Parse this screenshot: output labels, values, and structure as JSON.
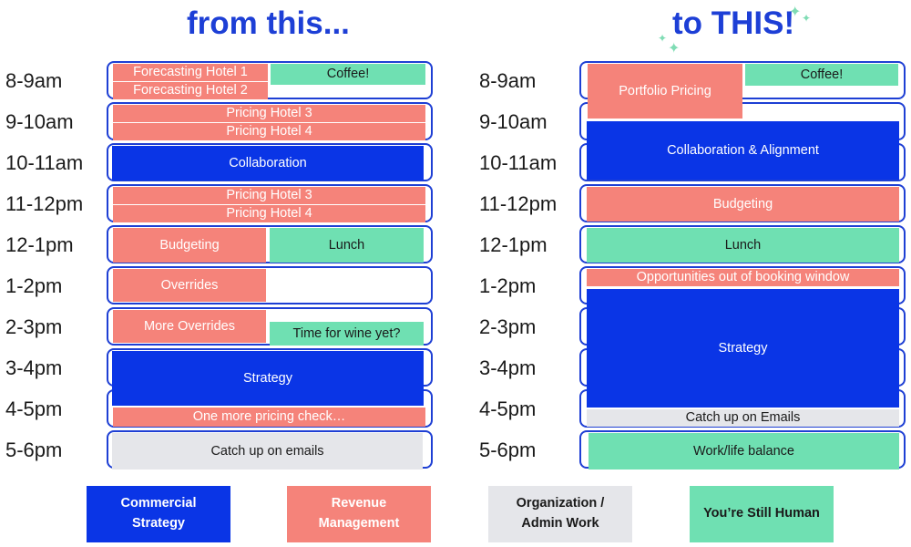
{
  "colors": {
    "title": "#1d3fd6",
    "slot_border": "#1e3fd4",
    "commercial": "#0a35e6",
    "revenue": "#f5837a",
    "admin": "#e5e6ea",
    "human": "#6fe0b2"
  },
  "titles": {
    "left": "from this...",
    "right": "to THIS!"
  },
  "times": [
    "8-9am",
    "9-10am",
    "10-11am",
    "11-12pm",
    "12-1pm",
    "1-2pm",
    "2-3pm",
    "3-4pm",
    "4-5pm",
    "5-6pm"
  ],
  "before": {
    "blocks": [
      {
        "category": "revenue",
        "label": "Forecasting Hotel 1"
      },
      {
        "category": "revenue",
        "label": "Forecasting Hotel 2"
      },
      {
        "category": "human",
        "label": "Coffee!"
      },
      {
        "category": "revenue",
        "label": "Pricing Hotel 3"
      },
      {
        "category": "revenue",
        "label": "Pricing Hotel 4"
      },
      {
        "category": "commercial",
        "label": "Collaboration"
      },
      {
        "category": "revenue",
        "label": "Pricing Hotel 3"
      },
      {
        "category": "revenue",
        "label": "Pricing Hotel 4"
      },
      {
        "category": "revenue",
        "label": "Budgeting"
      },
      {
        "category": "human",
        "label": "Lunch"
      },
      {
        "category": "revenue",
        "label": "Overrides"
      },
      {
        "category": "revenue",
        "label": "More Overrides"
      },
      {
        "category": "human",
        "label": "Time for wine yet?"
      },
      {
        "category": "commercial",
        "label": "Strategy"
      },
      {
        "category": "revenue",
        "label": "One more pricing check…"
      },
      {
        "category": "admin",
        "label": "Catch up on emails"
      }
    ]
  },
  "after": {
    "blocks": [
      {
        "category": "revenue",
        "label": "Portfolio Pricing"
      },
      {
        "category": "human",
        "label": "Coffee!"
      },
      {
        "category": "commercial",
        "label": "Collaboration & Alignment"
      },
      {
        "category": "revenue",
        "label": "Budgeting"
      },
      {
        "category": "human",
        "label": "Lunch"
      },
      {
        "category": "revenue",
        "label": "Opportunities out of booking window"
      },
      {
        "category": "commercial",
        "label": "Strategy"
      },
      {
        "category": "admin",
        "label": "Catch up on Emails"
      },
      {
        "category": "human",
        "label": "Work/life balance"
      }
    ]
  },
  "legend": [
    {
      "category": "commercial",
      "line1": "Commercial",
      "line2": "Strategy"
    },
    {
      "category": "revenue",
      "line1": "Revenue",
      "line2": "Management"
    },
    {
      "category": "admin",
      "line1": "Organization /",
      "line2": "Admin Work"
    },
    {
      "category": "human",
      "line1": "You’re Still Human",
      "line2": ""
    }
  ]
}
